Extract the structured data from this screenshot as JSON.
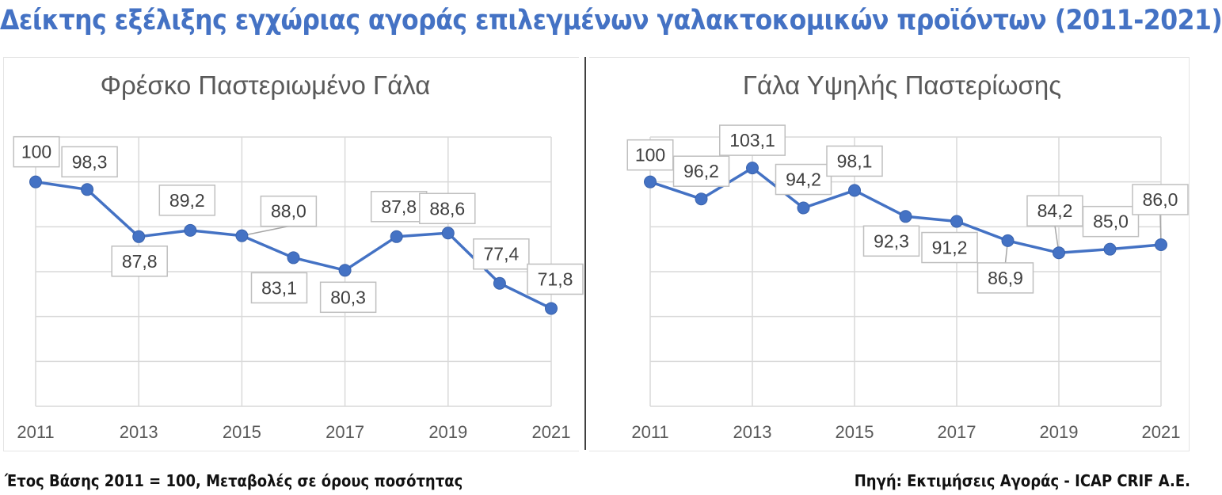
{
  "title": "Δείκτης εξέλιξης εγχώριας αγοράς επιλεγμένων γαλακτοκομικών προϊόντων (2011-2021)",
  "footer": {
    "note": "Έτος Βάσης 2011 = 100, Μεταβολές σε όρους ποσότητας",
    "source": "Πηγή: Εκτιμήσεις Αγοράς - ICAP CRIF A.E."
  },
  "colors": {
    "title": "#4472c4",
    "series": "#4472c4",
    "grid": "#d9d9d9",
    "label_border": "#bfbfbf"
  },
  "chart_data": [
    {
      "type": "line",
      "title": "Φρέσκο Παστεριωμένο Γάλα",
      "x": [
        2011,
        2012,
        2013,
        2014,
        2015,
        2016,
        2017,
        2018,
        2019,
        2020,
        2021
      ],
      "tick_labels": [
        "2011",
        "2013",
        "2015",
        "2017",
        "2019",
        "2021"
      ],
      "values": [
        100,
        98.3,
        87.8,
        89.2,
        88.0,
        83.1,
        80.3,
        87.8,
        88.6,
        77.4,
        71.8
      ],
      "data_labels": [
        "100",
        "98,3",
        "87,8",
        "89,2",
        "88,0",
        "83,1",
        "80,3",
        "87,8",
        "88,6",
        "77,4",
        "71,8"
      ],
      "ylim": [
        50,
        110
      ],
      "grid": true,
      "legend": "none"
    },
    {
      "type": "line",
      "title": "Γάλα Υψηλής Παστερίωσης",
      "x": [
        2011,
        2012,
        2013,
        2014,
        2015,
        2016,
        2017,
        2018,
        2019,
        2020,
        2021
      ],
      "tick_labels": [
        "2011",
        "2013",
        "2015",
        "2017",
        "2019",
        "2021"
      ],
      "values": [
        100,
        96.2,
        103.1,
        94.2,
        98.1,
        92.3,
        91.2,
        86.9,
        84.2,
        85.0,
        86.0
      ],
      "data_labels": [
        "100",
        "96,2",
        "103,1",
        "94,2",
        "98,1",
        "92,3",
        "91,2",
        "86,9",
        "84,2",
        "85,0",
        "86,0"
      ],
      "ylim": [
        50,
        110
      ],
      "grid": true,
      "legend": "none"
    }
  ]
}
